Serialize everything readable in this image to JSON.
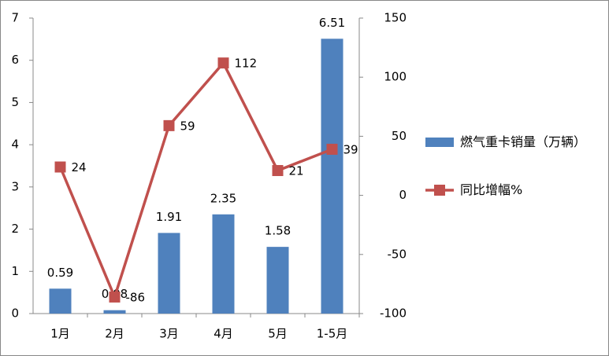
{
  "chart_data": {
    "type": "bar",
    "categories": [
      "1月",
      "2月",
      "3月",
      "4月",
      "5月",
      "1-5月"
    ],
    "series": [
      {
        "name": "燃气重卡销量（万辆）",
        "type": "bar",
        "color": "#4f81bd",
        "values": [
          0.59,
          0.08,
          1.91,
          2.35,
          1.58,
          6.51
        ]
      },
      {
        "name": "同比增幅%",
        "type": "line",
        "axis": "y2",
        "color": "#c0504d",
        "values": [
          24,
          -86,
          59,
          112,
          21,
          39
        ]
      }
    ],
    "ylim": [
      0,
      7
    ],
    "yticks": [
      0,
      1,
      2,
      3,
      4,
      5,
      6,
      7
    ],
    "y2lim": [
      -100,
      150
    ],
    "y2ticks": [
      -100,
      -50,
      0,
      50,
      100,
      150
    ],
    "grid": false,
    "legend": "right"
  }
}
